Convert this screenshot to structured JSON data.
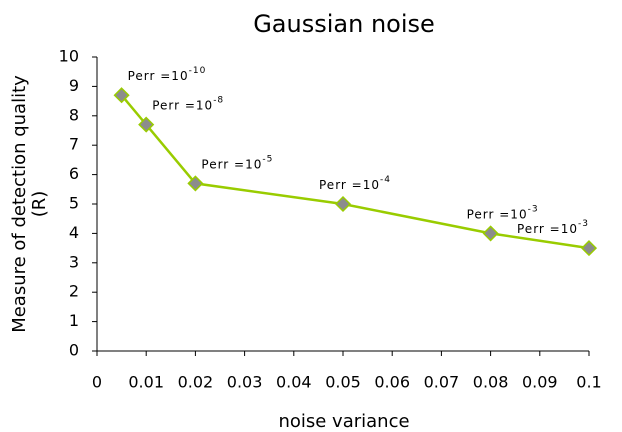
{
  "chart_data": {
    "type": "line",
    "title": "Gaussian noise",
    "xlabel": "noise variance",
    "ylabel": [
      "Measure of detection quality",
      "(R)"
    ],
    "x": [
      0.005,
      0.01,
      0.02,
      0.05,
      0.08,
      0.1
    ],
    "series": [
      {
        "name": "R",
        "color": "#99cc00",
        "marker_color": "#8c8c8c",
        "values": [
          8.7,
          7.7,
          5.7,
          5.0,
          4.0,
          3.5
        ]
      }
    ],
    "annotations": [
      {
        "text": "Perr =10",
        "sup": "-10"
      },
      {
        "text": "Perr =10",
        "sup": "-8"
      },
      {
        "text": "Perr =10",
        "sup": "-5"
      },
      {
        "text": "Perr =10",
        "sup": "-4"
      },
      {
        "text": "Perr =10",
        "sup": "-3"
      },
      {
        "text": "Perr =10",
        "sup": "-3"
      }
    ],
    "xlim": [
      0,
      0.1
    ],
    "xticks": [
      0,
      0.01,
      0.02,
      0.03,
      0.04,
      0.05,
      0.06,
      0.07,
      0.08,
      0.09,
      0.1
    ],
    "ylim": [
      0,
      10
    ],
    "yticks": [
      0,
      1,
      2,
      3,
      4,
      5,
      6,
      7,
      8,
      9,
      10
    ],
    "grid": false
  }
}
